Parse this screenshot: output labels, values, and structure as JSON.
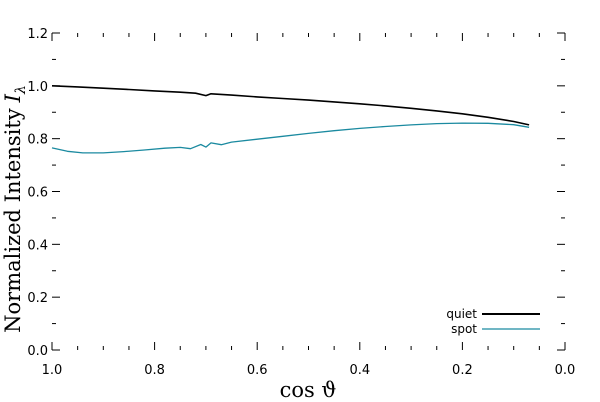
{
  "chart_data": {
    "type": "line",
    "xlabel": "cos ϑ",
    "ylabel": "Normalized Intensity",
    "ylabel_symbol": "I",
    "ylabel_subscript": "λ",
    "xlim": [
      1.0,
      0.0
    ],
    "ylim": [
      0.0,
      1.2
    ],
    "x_ticks": [
      "1.0",
      "0.8",
      "0.6",
      "0.4",
      "0.2",
      "0.0"
    ],
    "y_ticks": [
      "0.0",
      "0.2",
      "0.4",
      "0.6",
      "0.8",
      "1.0",
      "1.2"
    ],
    "grid": false,
    "legend_position": "bottom-right",
    "series": [
      {
        "name": "quiet",
        "color": "#000000",
        "x": [
          1.0,
          0.95,
          0.9,
          0.85,
          0.8,
          0.75,
          0.72,
          0.7,
          0.69,
          0.65,
          0.6,
          0.55,
          0.5,
          0.45,
          0.4,
          0.35,
          0.3,
          0.25,
          0.2,
          0.15,
          0.1,
          0.07
        ],
        "y": [
          1.0,
          0.996,
          0.991,
          0.986,
          0.981,
          0.976,
          0.972,
          0.963,
          0.97,
          0.965,
          0.958,
          0.952,
          0.946,
          0.939,
          0.932,
          0.924,
          0.915,
          0.905,
          0.894,
          0.881,
          0.865,
          0.852
        ]
      },
      {
        "name": "spot",
        "color": "#1b8aa0",
        "x": [
          1.0,
          0.97,
          0.94,
          0.9,
          0.86,
          0.82,
          0.78,
          0.75,
          0.73,
          0.71,
          0.7,
          0.69,
          0.67,
          0.65,
          0.6,
          0.55,
          0.5,
          0.45,
          0.4,
          0.35,
          0.3,
          0.25,
          0.2,
          0.15,
          0.1,
          0.07
        ],
        "y": [
          0.765,
          0.752,
          0.746,
          0.746,
          0.751,
          0.757,
          0.764,
          0.767,
          0.762,
          0.778,
          0.768,
          0.784,
          0.777,
          0.787,
          0.798,
          0.809,
          0.82,
          0.83,
          0.839,
          0.846,
          0.852,
          0.857,
          0.859,
          0.858,
          0.853,
          0.843
        ]
      }
    ]
  }
}
